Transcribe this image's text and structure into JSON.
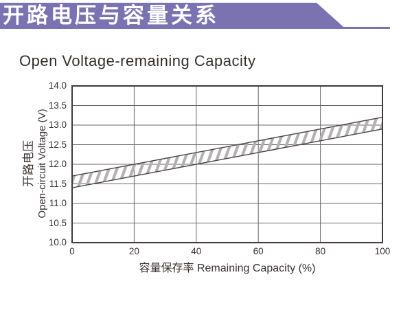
{
  "banner": {
    "title": "开路电压与容量关系",
    "bg_color": "#7b72b2",
    "text_color": "#ffffff"
  },
  "chart": {
    "title": "Open Voltage-remaining Capacity"
  },
  "chart_data": {
    "type": "area",
    "title": "Open Voltage-remaining Capacity",
    "xlabel": "容量保存率 Remaining Capacity (%)",
    "ylabel_cn": "开路电压",
    "ylabel_en": "Open-circuit Voltage (V)",
    "xlim": [
      0,
      100
    ],
    "ylim": [
      10.0,
      14.0
    ],
    "x_tick_labels": [
      "0",
      "20",
      "40",
      "60",
      "80",
      "100"
    ],
    "y_tick_labels": [
      "14.0",
      "13.5",
      "13.0",
      "12.5",
      "12.0",
      "11.5",
      "11.0",
      "10.5",
      "10.0"
    ],
    "grid": true,
    "legend": "none",
    "band": {
      "name": "open-circuit-voltage-range",
      "style": "diagonal-hatch",
      "x": [
        0,
        100
      ],
      "upper": [
        11.7,
        13.2
      ],
      "lower": [
        11.4,
        12.9
      ]
    },
    "colors": {
      "grid_line": "#6a6564",
      "border": "#3f3938",
      "band_outline": "#4a4243",
      "hatch": "#b4b1b4",
      "text": "#383231"
    }
  }
}
